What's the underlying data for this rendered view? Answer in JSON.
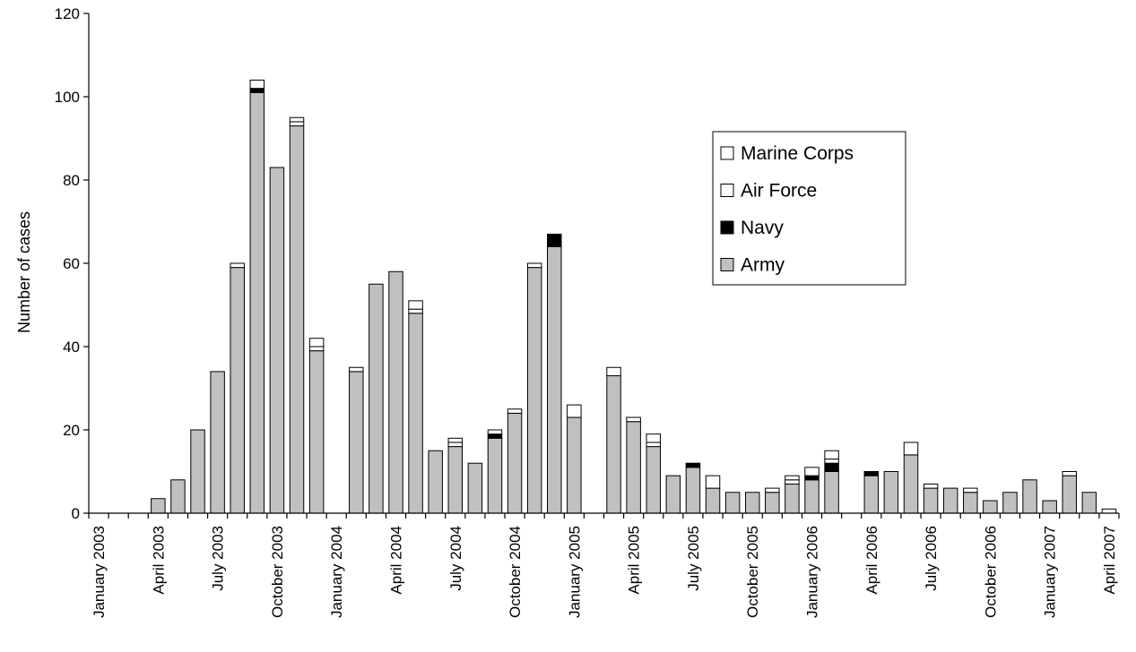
{
  "chart_data": {
    "type": "bar",
    "stacked": true,
    "title": "",
    "xlabel": "",
    "ylabel": "Number of cases",
    "ylim": [
      0,
      120
    ],
    "y_ticks": [
      0,
      20,
      40,
      60,
      80,
      100,
      120
    ],
    "grid": false,
    "legend_position": "upper-right",
    "x_tick_labels": [
      {
        "label": "January 2003",
        "index": 0
      },
      {
        "label": "April 2003",
        "index": 3
      },
      {
        "label": "July 2003",
        "index": 6
      },
      {
        "label": "October 2003",
        "index": 9
      },
      {
        "label": "January 2004",
        "index": 12
      },
      {
        "label": "April 2004",
        "index": 15
      },
      {
        "label": "July 2004",
        "index": 18
      },
      {
        "label": "October 2004",
        "index": 21
      },
      {
        "label": "January 2005",
        "index": 24
      },
      {
        "label": "April 2005",
        "index": 27
      },
      {
        "label": "July 2005",
        "index": 30
      },
      {
        "label": "October 2005",
        "index": 33
      },
      {
        "label": "January 2006",
        "index": 36
      },
      {
        "label": "April 2006",
        "index": 39
      },
      {
        "label": "July 2006",
        "index": 42
      },
      {
        "label": "October 2006",
        "index": 45
      },
      {
        "label": "January 2007",
        "index": 48
      },
      {
        "label": "April 2007",
        "index": 51
      }
    ],
    "months": [
      "Jan 2003",
      "Feb 2003",
      "Mar 2003",
      "Apr 2003",
      "May 2003",
      "Jun 2003",
      "Jul 2003",
      "Aug 2003",
      "Sep 2003",
      "Oct 2003",
      "Nov 2003",
      "Dec 2003",
      "Jan 2004",
      "Feb 2004",
      "Mar 2004",
      "Apr 2004",
      "May 2004",
      "Jun 2004",
      "Jul 2004",
      "Aug 2004",
      "Sep 2004",
      "Oct 2004",
      "Nov 2004",
      "Dec 2004",
      "Jan 2005",
      "Feb 2005",
      "Mar 2005",
      "Apr 2005",
      "May 2005",
      "Jun 2005",
      "Jul 2005",
      "Aug 2005",
      "Sep 2005",
      "Oct 2005",
      "Nov 2005",
      "Dec 2005",
      "Jan 2006",
      "Feb 2006",
      "Mar 2006",
      "Apr 2006",
      "May 2006",
      "Jun 2006",
      "Jul 2006",
      "Aug 2006",
      "Sep 2006",
      "Oct 2006",
      "Nov 2006",
      "Dec 2006",
      "Jan 2007",
      "Feb 2007",
      "Mar 2007",
      "Apr 2007"
    ],
    "series": [
      {
        "name": "Army",
        "color": "#c0c0c0",
        "values": [
          0,
          0,
          0,
          3.5,
          8,
          20,
          34,
          59,
          101,
          83,
          93,
          39,
          0,
          34,
          55,
          58,
          48,
          15,
          16,
          12,
          18,
          24,
          59,
          64,
          23,
          0,
          33,
          22,
          16,
          9,
          11,
          6,
          5,
          5,
          5,
          7,
          8,
          10,
          0,
          9,
          10,
          14,
          6,
          6,
          5,
          3,
          5,
          8,
          3,
          9,
          5,
          0
        ]
      },
      {
        "name": "Navy",
        "color": "#000000",
        "values": [
          0,
          0,
          0,
          0,
          0,
          0,
          0,
          0,
          1,
          0,
          0,
          0,
          0,
          0,
          0,
          0,
          0,
          0,
          0,
          0,
          1,
          0,
          0,
          3,
          0,
          0,
          0,
          0,
          0,
          0,
          1,
          0,
          0,
          0,
          0,
          0,
          1,
          2,
          0,
          1,
          0,
          0,
          0,
          0,
          0,
          0,
          0,
          0,
          0,
          0,
          0,
          0
        ]
      },
      {
        "name": "Air Force",
        "color": "#ffffff",
        "values": [
          0,
          0,
          0,
          0,
          0,
          0,
          0,
          0,
          0,
          0,
          1,
          1,
          0,
          0,
          0,
          0,
          1,
          0,
          1,
          0,
          0,
          0,
          0,
          0,
          0,
          0,
          0,
          0,
          1,
          0,
          0,
          0,
          0,
          0,
          0,
          1,
          0,
          1,
          0,
          0,
          0,
          0,
          0,
          0,
          0,
          0,
          0,
          0,
          0,
          0,
          0,
          0
        ]
      },
      {
        "name": "Marine Corps",
        "color": "#ffffff",
        "values": [
          0,
          0,
          0,
          0,
          0,
          0,
          0,
          1,
          2,
          0,
          1,
          2,
          0,
          1,
          0,
          0,
          2,
          0,
          1,
          0,
          1,
          1,
          1,
          0,
          3,
          0,
          2,
          1,
          2,
          0,
          0,
          3,
          0,
          0,
          1,
          1,
          2,
          2,
          0,
          0,
          0,
          3,
          1,
          0,
          1,
          0,
          0,
          0,
          0,
          1,
          0,
          1
        ]
      }
    ],
    "legend": [
      {
        "name": "Marine Corps",
        "swatch": "#ffffff"
      },
      {
        "name": "Air Force",
        "swatch": "#ffffff"
      },
      {
        "name": "Navy",
        "swatch": "#000000"
      },
      {
        "name": "Army",
        "swatch": "#c0c0c0"
      }
    ]
  }
}
